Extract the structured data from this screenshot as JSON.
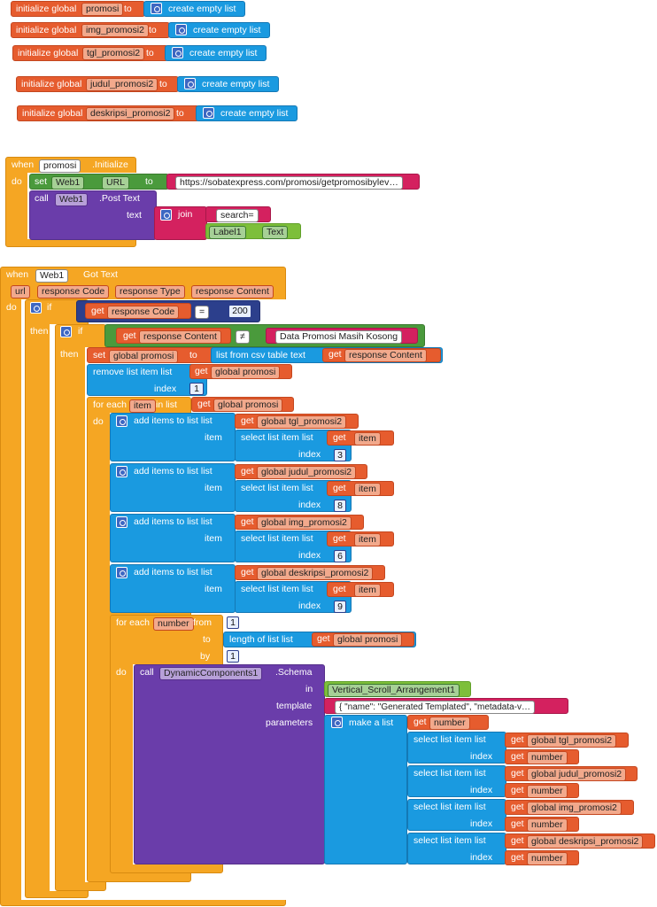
{
  "globals": [
    {
      "prefix": "initialize global",
      "name": "promosi",
      "to": "to",
      "list": "create empty list"
    },
    {
      "prefix": "initialize global",
      "name": "img_promosi2",
      "to": "to",
      "list": "create empty list"
    },
    {
      "prefix": "initialize global",
      "name": "tgl_promosi2",
      "to": "to",
      "list": "create empty list"
    },
    {
      "prefix": "initialize global",
      "name": "judul_promosi2",
      "to": "to",
      "list": "create empty list"
    },
    {
      "prefix": "initialize global",
      "name": "deskripsi_promosi2",
      "to": "to",
      "list": "create empty list"
    }
  ],
  "init_event": {
    "when": "when",
    "component": "promosi",
    "event": ".Initialize",
    "do": "do",
    "set": "set",
    "web": "Web1",
    "prop": "URL",
    "to": "to",
    "url": "https://sobatexpress.com/promosi/getpromosibylev…",
    "call": "call",
    "method": ".Post Text",
    "text": "text",
    "join": "join",
    "search": "search=",
    "label": "Label1",
    "label_prop": "Text"
  },
  "got_event": {
    "when": "when",
    "component": "Web1",
    "event": "Got Text",
    "params": [
      "url",
      "response Code",
      "response Type",
      "response Content"
    ],
    "do": "do",
    "if": "if",
    "then": "then",
    "get": "get",
    "response_code": "response Code",
    "eq": "=",
    "num200": "200",
    "response_content": "response Content",
    "neq": "≠",
    "empty_text": "Data Promosi Masih Kosong",
    "set": "set",
    "global_promosi": "global promosi",
    "to": "to",
    "csv": "list from csv table  text",
    "remove": "remove list item  list",
    "index": "index",
    "one": "1",
    "for_each": "for each",
    "item": "item",
    "in_list": "in list",
    "add": "add items to list   list",
    "item_lbl": "item",
    "select": "select list item  list",
    "adds": [
      {
        "list": "global tgl_promosi2",
        "idx": "3"
      },
      {
        "list": "global judul_promosi2",
        "idx": "8"
      },
      {
        "list": "global img_promosi2",
        "idx": "6"
      },
      {
        "list": "global deskripsi_promosi2",
        "idx": "9"
      }
    ],
    "for_each_num": "for each",
    "number": "number",
    "from": "from",
    "to2": "to",
    "by": "by",
    "length": "length of list  list",
    "call": "call",
    "dc": "DynamicComponents1",
    "schema": ".Schema",
    "in": "in",
    "vsa": "Vertical_Scroll_Arrangement1",
    "template": "template",
    "template_val": "{   \"name\": \"Generated Templated\",   \"metadata-v…",
    "parameters": "parameters",
    "make_list": "make a list",
    "selects": [
      {
        "list": "global tgl_promosi2"
      },
      {
        "list": "global judul_promosi2"
      },
      {
        "list": "global img_promosi2"
      },
      {
        "list": "global deskripsi_promosi2"
      }
    ]
  }
}
